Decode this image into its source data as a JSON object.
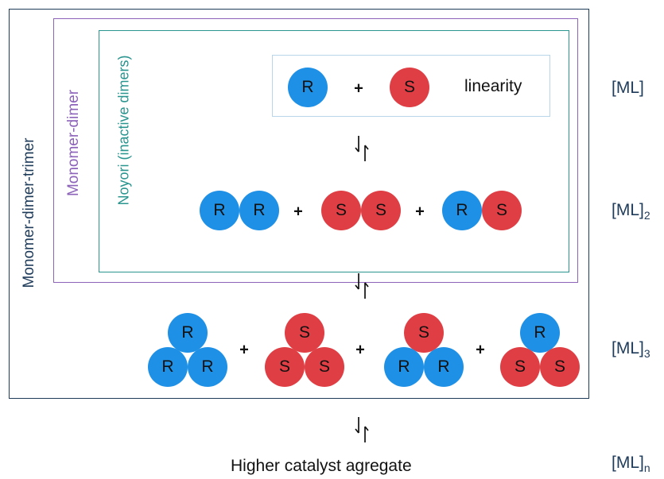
{
  "boxes": {
    "outer_label": "Monomer-dimer-trimer",
    "mid_label": "Monomer-dimer",
    "inner_label": "Noyori (inactive dimers)"
  },
  "monomer_row": {
    "left": "R",
    "plus": "+",
    "right": "S",
    "note": "linearity"
  },
  "dimer_row": {
    "d1": [
      "R",
      "R"
    ],
    "d2": [
      "S",
      "S"
    ],
    "d3": [
      "R",
      "S"
    ],
    "plus": "+"
  },
  "trimer_row": {
    "t1": [
      "R",
      "R",
      "R"
    ],
    "t2": [
      "S",
      "S",
      "S"
    ],
    "t3": [
      "S",
      "R",
      "R"
    ],
    "t4": [
      "R",
      "S",
      "S"
    ],
    "plus": "+"
  },
  "footer": {
    "text": "Higher catalyst agregate"
  },
  "species": {
    "monomer": {
      "base": "[ML]",
      "sub": ""
    },
    "dimer": {
      "base": "[ML]",
      "sub": "2"
    },
    "trimer": {
      "base": "[ML]",
      "sub": "3"
    },
    "higher": {
      "base": "[ML]",
      "sub": "n"
    }
  },
  "colors": {
    "R": "#1e90e6",
    "S": "#de3e44",
    "outer": "#1f3b5a",
    "mid": "#8c63b9",
    "inner": "#2a948f"
  },
  "icons": {
    "equilibrium": "equilibrium-arrows-icon"
  }
}
